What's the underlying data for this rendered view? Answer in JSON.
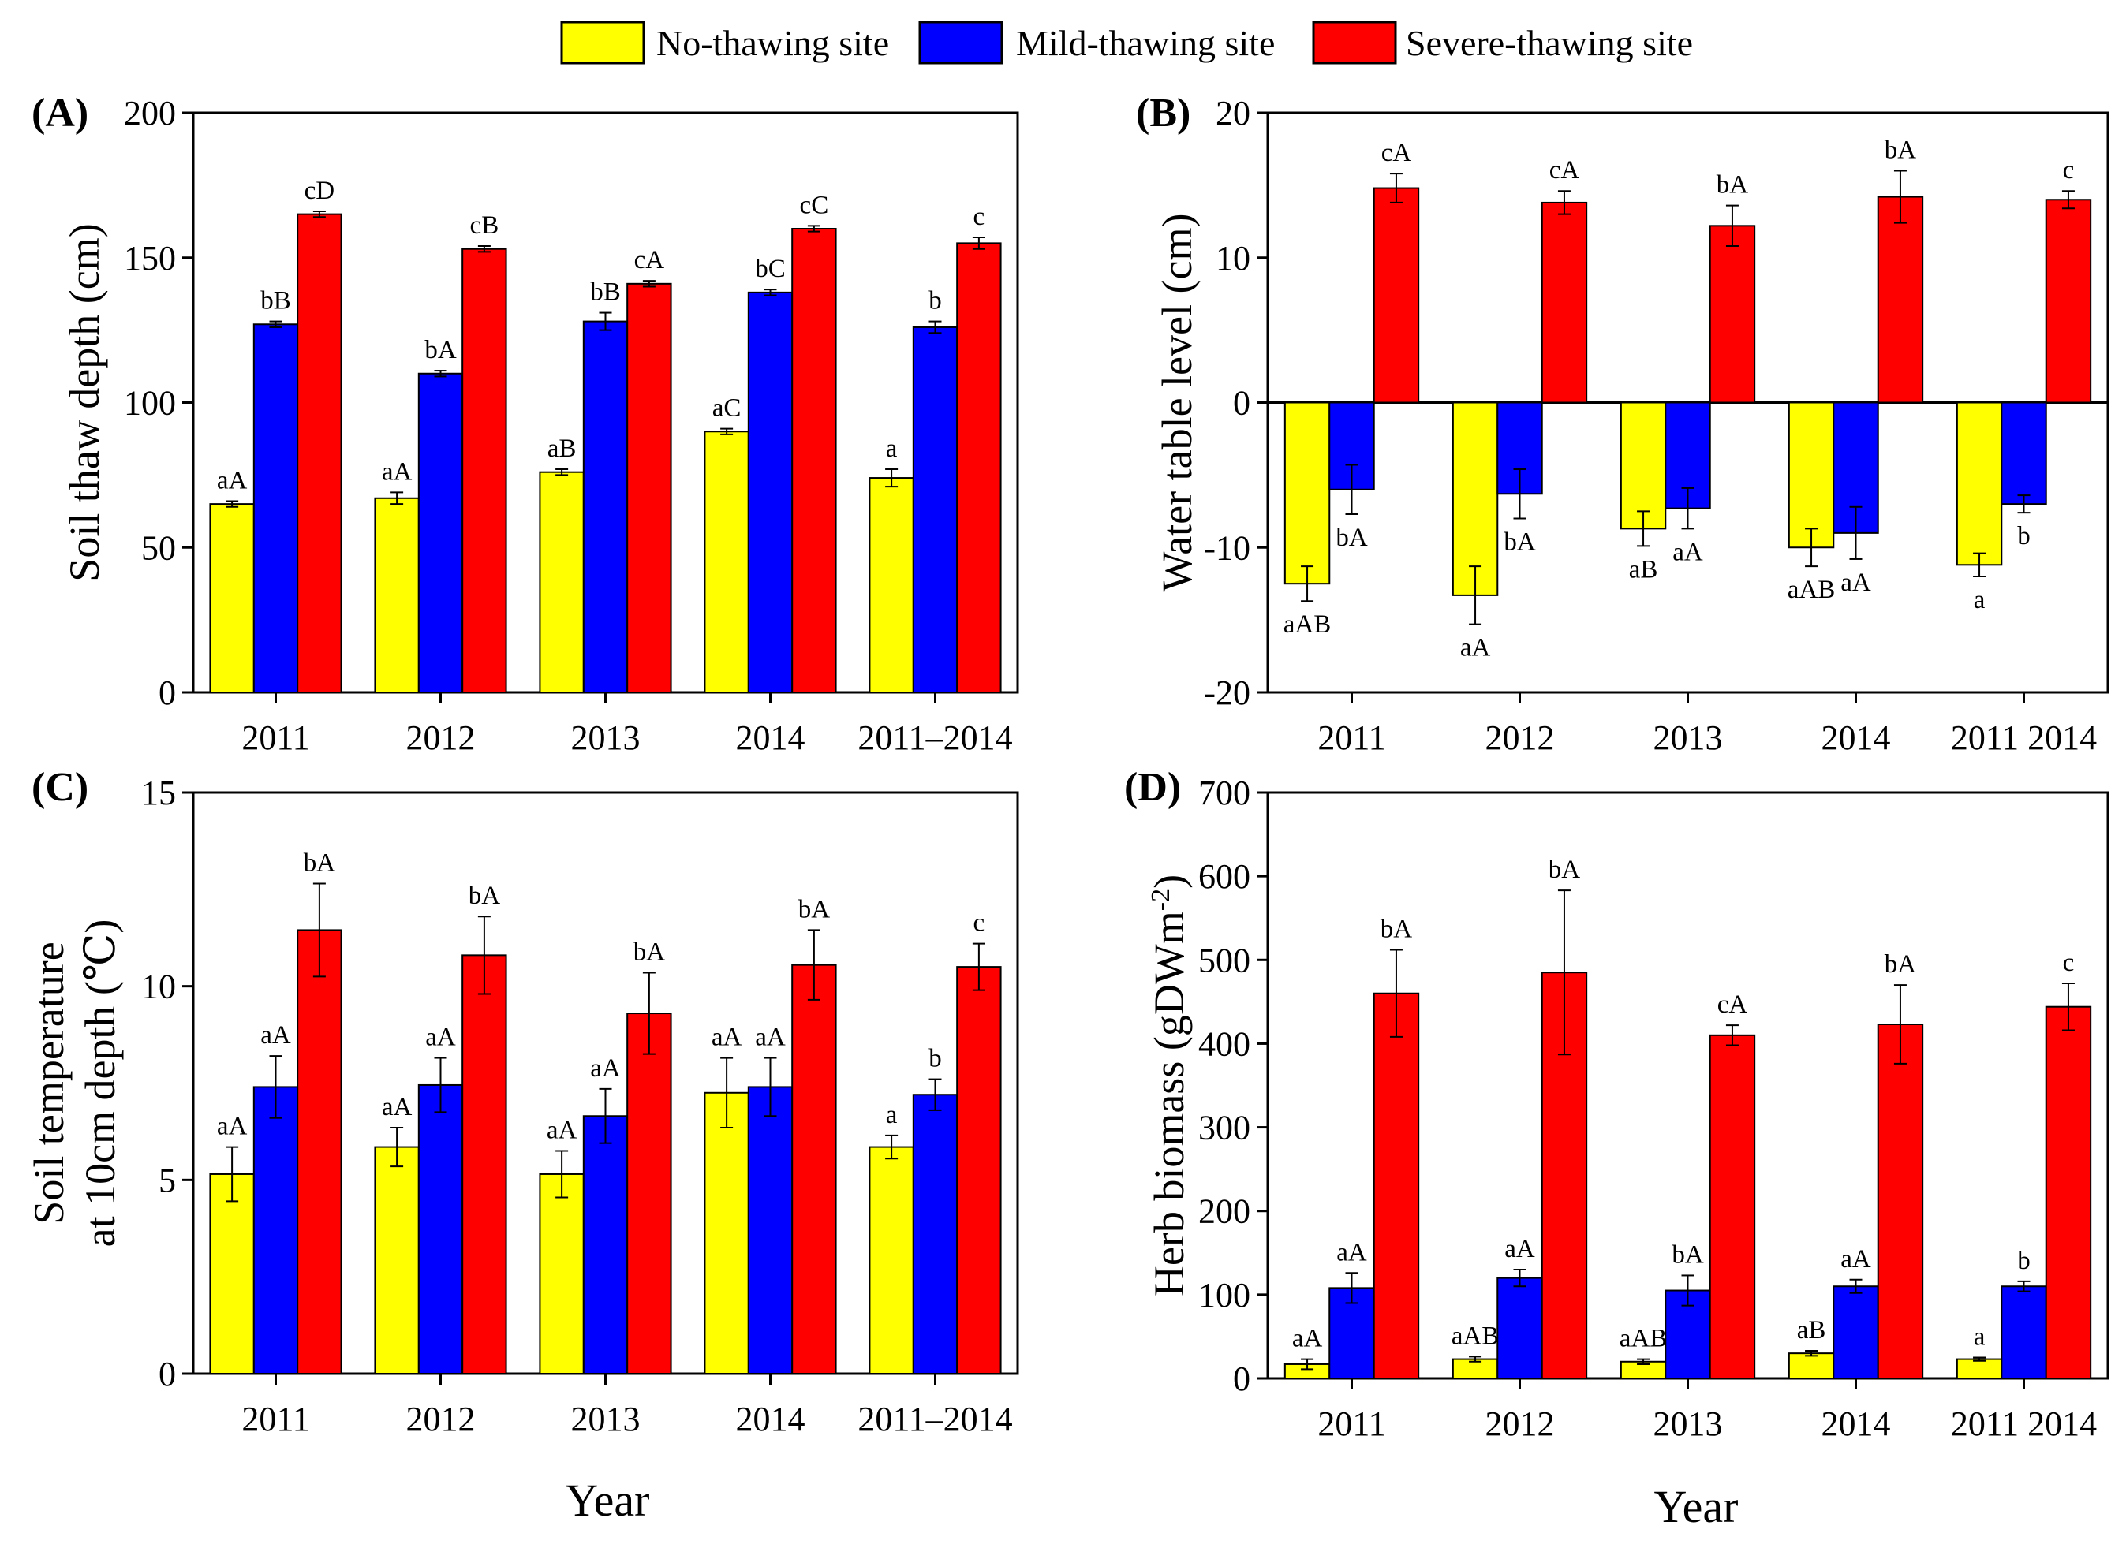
{
  "legend": [
    {
      "label": "No-thawing site",
      "color": "#ffff00"
    },
    {
      "label": "Mild-thawing site",
      "color": "#0000ff"
    },
    {
      "label": "Severe-thawing site",
      "color": "#ff0000"
    }
  ],
  "x_titles": [
    "Year",
    "Year"
  ],
  "chart_data": [
    {
      "panel": "(A)",
      "type": "bar",
      "ylabel": "Soil thaw depth (cm)",
      "categories": [
        "2011",
        "2012",
        "2013",
        "2014",
        "2011–2014"
      ],
      "ylim": [
        0,
        200
      ],
      "yticks": [
        0,
        50,
        100,
        150,
        200
      ],
      "series": [
        {
          "name": "No-thawing site",
          "values": [
            65,
            67,
            76,
            90,
            74
          ],
          "errors": [
            1,
            2,
            1,
            1,
            3
          ],
          "labels": [
            "aA",
            "aA",
            "aB",
            "aC",
            "a"
          ]
        },
        {
          "name": "Mild-thawing site",
          "values": [
            127,
            110,
            128,
            138,
            126
          ],
          "errors": [
            1,
            1,
            3,
            1,
            2
          ],
          "labels": [
            "bB",
            "bA",
            "bB",
            "bC",
            "b"
          ]
        },
        {
          "name": "Severe-thawing site",
          "values": [
            165,
            153,
            141,
            160,
            155
          ],
          "errors": [
            1,
            1,
            1,
            1,
            2
          ],
          "labels": [
            "cD",
            "cB",
            "cA",
            "cC",
            "c"
          ]
        }
      ]
    },
    {
      "panel": "(B)",
      "type": "bar",
      "ylabel": "Water table level (cm)",
      "categories": [
        "2011",
        "2012",
        "2013",
        "2014",
        "2011–2014"
      ],
      "ylim": [
        -20,
        20
      ],
      "yticks": [
        -20,
        -10,
        0,
        10,
        20
      ],
      "series": [
        {
          "name": "No-thawing site",
          "values": [
            -12.5,
            -13.3,
            -8.7,
            -10,
            -11.2
          ],
          "errors": [
            1.2,
            2,
            1.2,
            1.3,
            0.8
          ],
          "labels": [
            "aAB",
            "aA",
            "aB",
            "aAB",
            "a"
          ]
        },
        {
          "name": "Mild-thawing site",
          "values": [
            -6,
            -6.3,
            -7.3,
            -9,
            -7
          ],
          "errors": [
            1.7,
            1.7,
            1.4,
            1.8,
            0.6
          ],
          "labels": [
            "bA",
            "bA",
            "aA",
            "aA",
            "b"
          ]
        },
        {
          "name": "Severe-thawing site",
          "values": [
            14.8,
            13.8,
            12.2,
            14.2,
            14
          ],
          "errors": [
            1,
            0.8,
            1.4,
            1.8,
            0.6
          ],
          "labels": [
            "cA",
            "cA",
            "bA",
            "bA",
            "c"
          ]
        }
      ]
    },
    {
      "panel": "(C)",
      "type": "bar",
      "ylabel": "Soil temperature at 10cm depth (℃)",
      "categories": [
        "2011",
        "2012",
        "2013",
        "2014",
        "2011–2014"
      ],
      "ylim": [
        0,
        15
      ],
      "yticks": [
        0,
        5,
        10,
        15
      ],
      "series": [
        {
          "name": "No-thawing site",
          "values": [
            5.15,
            5.85,
            5.15,
            7.25,
            5.85
          ],
          "errors": [
            0.7,
            0.5,
            0.6,
            0.9,
            0.3
          ],
          "labels": [
            "aA",
            "aA",
            "aA",
            "aA",
            "a"
          ]
        },
        {
          "name": "Mild-thawing site",
          "values": [
            7.4,
            7.45,
            6.65,
            7.4,
            7.2
          ],
          "errors": [
            0.8,
            0.7,
            0.7,
            0.75,
            0.4
          ],
          "labels": [
            "aA",
            "aA",
            "aA",
            "aA",
            "b"
          ]
        },
        {
          "name": "Severe-thawing site",
          "values": [
            11.45,
            10.8,
            9.3,
            10.55,
            10.5
          ],
          "errors": [
            1.2,
            1,
            1.05,
            0.9,
            0.6
          ],
          "labels": [
            "bA",
            "bA",
            "bA",
            "bA",
            "c"
          ]
        }
      ]
    },
    {
      "panel": "(D)",
      "type": "bar",
      "ylabel": "Herb biomass (gDWm",
      "ylabel_sup": "-2",
      "ylabel_end": ")",
      "categories": [
        "2011",
        "2012",
        "2013",
        "2014",
        "2011–2014"
      ],
      "ylim": [
        0,
        700
      ],
      "yticks": [
        0,
        100,
        200,
        300,
        400,
        500,
        600,
        700
      ],
      "series": [
        {
          "name": "No-thawing site",
          "values": [
            17,
            23,
            20,
            30,
            23
          ],
          "errors": [
            6,
            3,
            3,
            3,
            2
          ],
          "labels": [
            "aA",
            "aAB",
            "aAB",
            "aB",
            "a"
          ]
        },
        {
          "name": "Mild-thawing site",
          "values": [
            108,
            120,
            105,
            110,
            110
          ],
          "errors": [
            18,
            10,
            18,
            8,
            6
          ],
          "labels": [
            "aA",
            "aA",
            "bA",
            "aA",
            "b"
          ]
        },
        {
          "name": "Severe-thawing site",
          "values": [
            460,
            485,
            410,
            423,
            444
          ],
          "errors": [
            52,
            98,
            12,
            47,
            28
          ],
          "labels": [
            "bA",
            "bA",
            "cA",
            "bA",
            "c"
          ]
        }
      ]
    }
  ]
}
